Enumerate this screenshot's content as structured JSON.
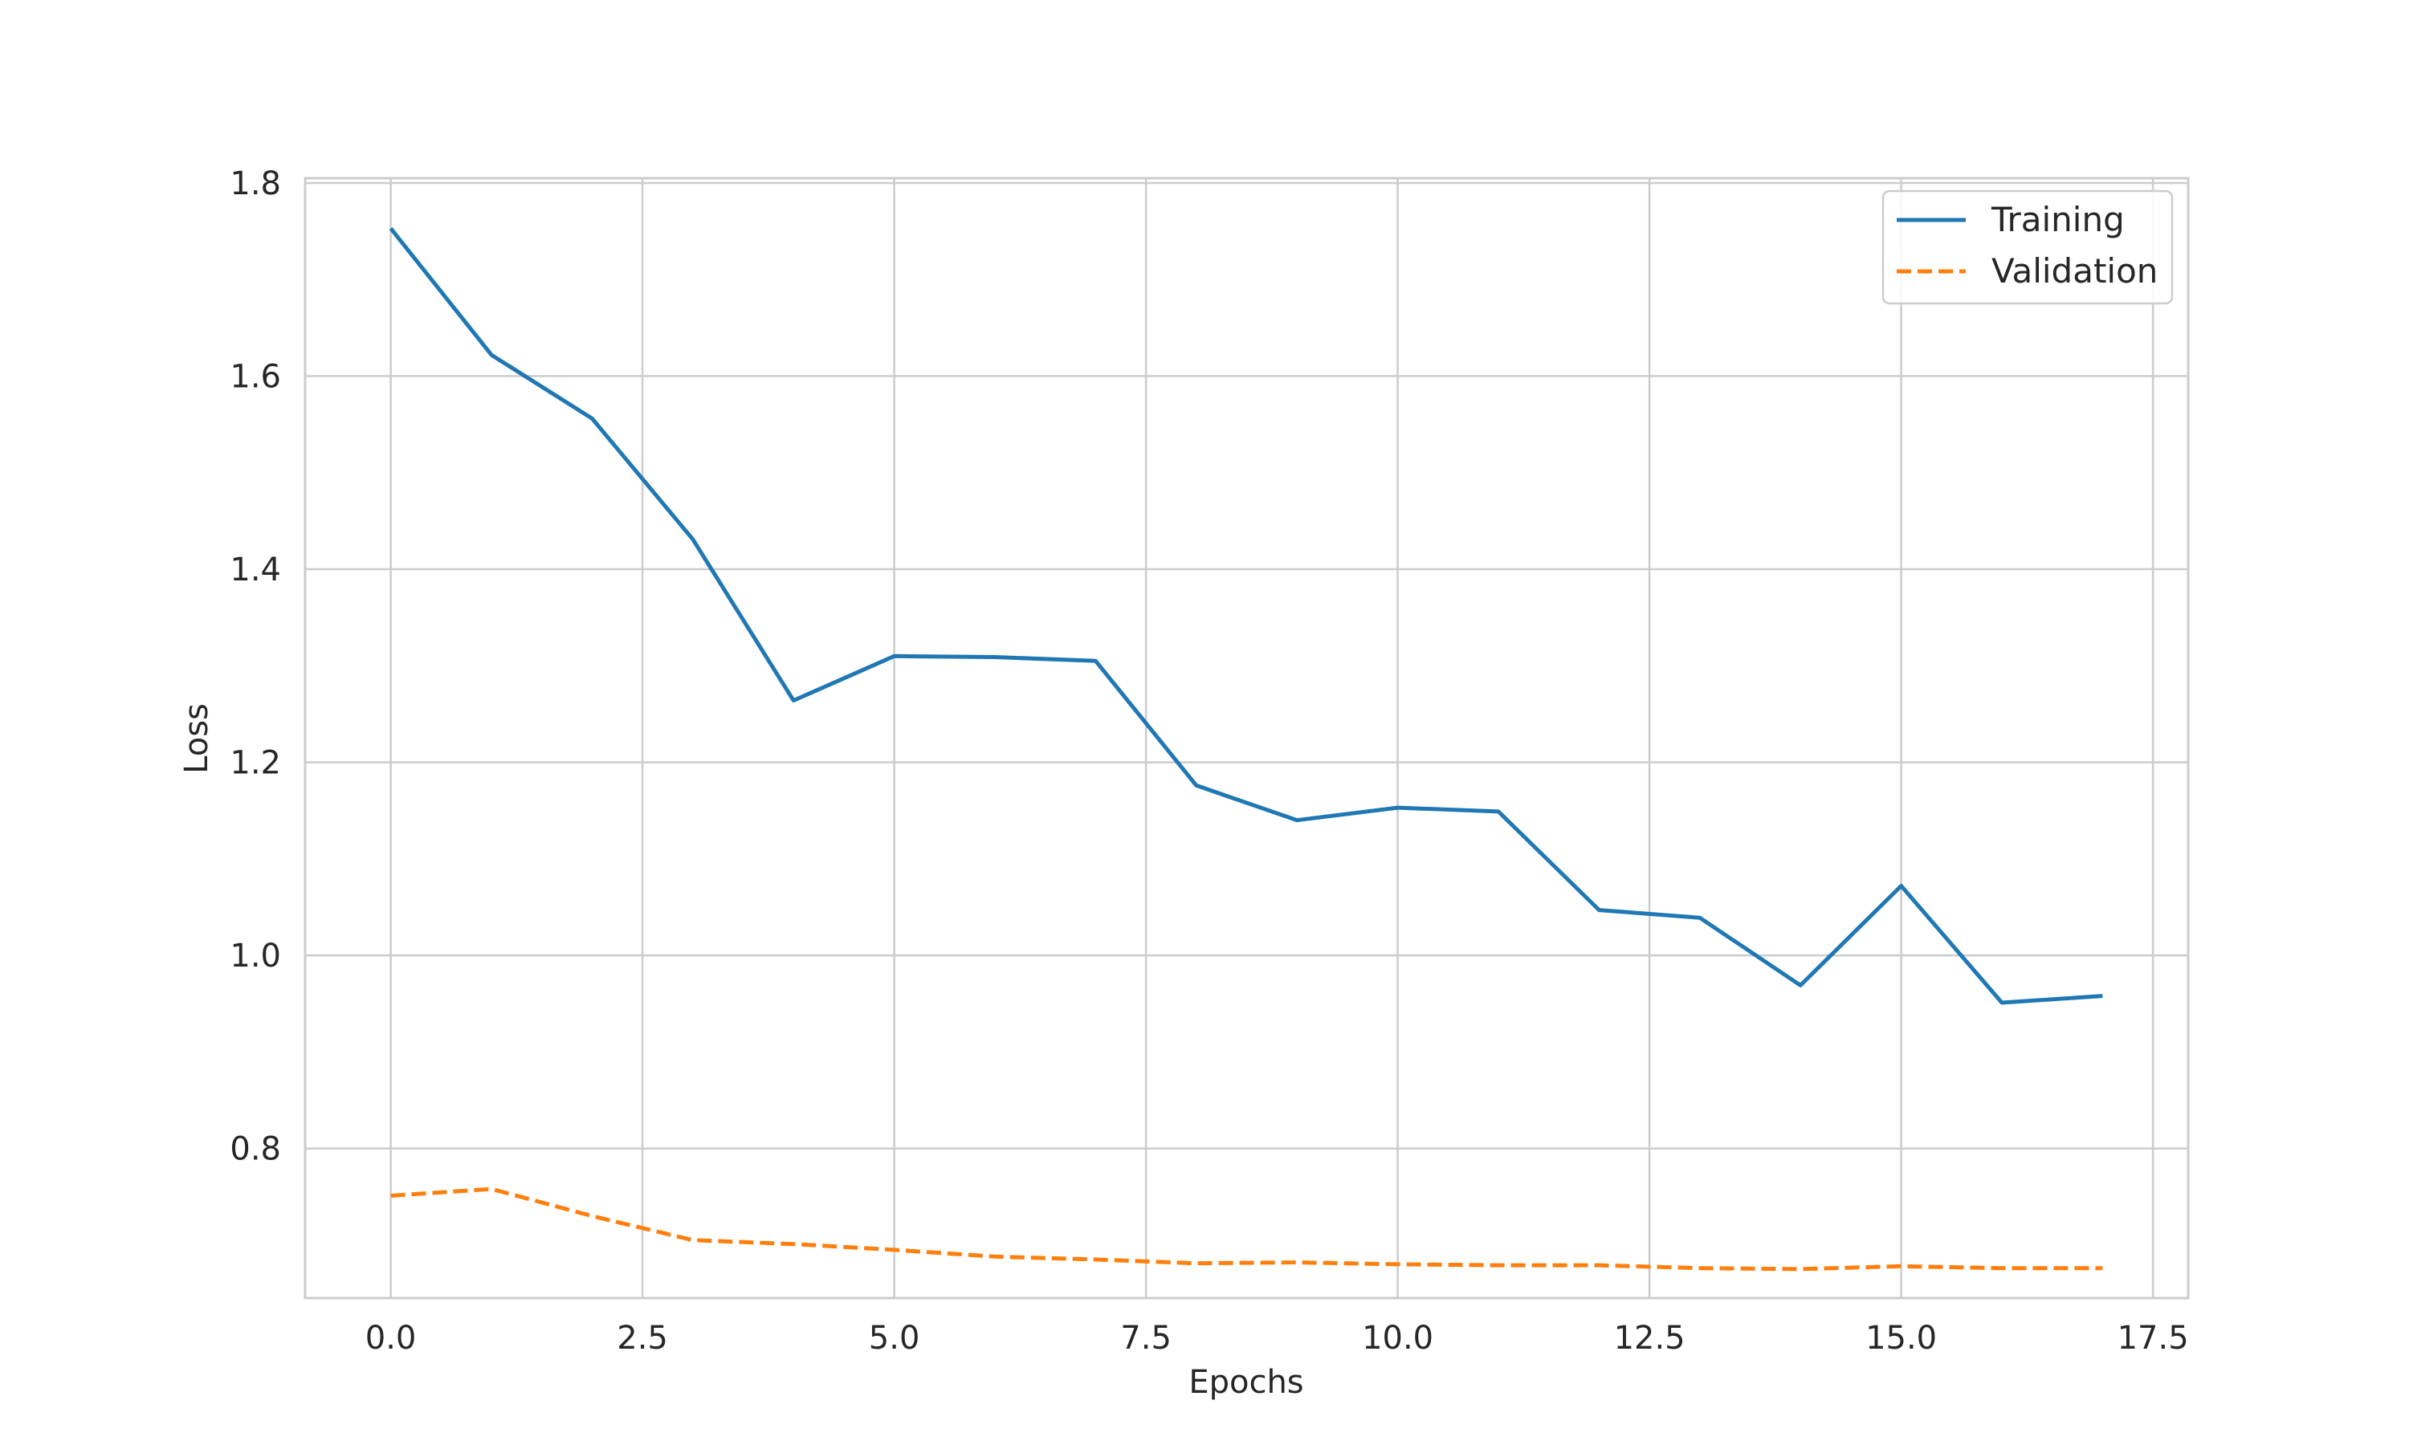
{
  "chart_data": {
    "type": "line",
    "xlabel": "Epochs",
    "ylabel": "Loss",
    "xlim": [
      -0.85,
      17.85
    ],
    "ylim": [
      0.645,
      1.805
    ],
    "xticks": [
      0.0,
      2.5,
      5.0,
      7.5,
      10.0,
      12.5,
      15.0,
      17.5
    ],
    "xtick_labels": [
      "0.0",
      "2.5",
      "5.0",
      "7.5",
      "10.0",
      "12.5",
      "15.0",
      "17.5"
    ],
    "yticks": [
      0.8,
      1.0,
      1.2,
      1.4,
      1.6,
      1.8
    ],
    "ytick_labels": [
      "0.8",
      "1.0",
      "1.2",
      "1.4",
      "1.6",
      "1.8"
    ],
    "grid": true,
    "legend_position": "top-right",
    "x": [
      0,
      1,
      2,
      3,
      4,
      5,
      6,
      7,
      8,
      9,
      10,
      11,
      12,
      13,
      14,
      15,
      16,
      17
    ],
    "series": [
      {
        "name": "Training",
        "color": "#1f77b4",
        "style": "solid",
        "values": [
          1.753,
          1.622,
          1.556,
          1.431,
          1.264,
          1.31,
          1.309,
          1.305,
          1.176,
          1.14,
          1.153,
          1.149,
          1.047,
          1.039,
          0.969,
          1.072,
          0.951,
          0.958
        ]
      },
      {
        "name": "Validation",
        "color": "#ff7f0e",
        "style": "dashed",
        "values": [
          0.751,
          0.758,
          0.73,
          0.705,
          0.701,
          0.695,
          0.688,
          0.685,
          0.681,
          0.682,
          0.68,
          0.679,
          0.679,
          0.676,
          0.675,
          0.678,
          0.676,
          0.676
        ]
      }
    ]
  }
}
